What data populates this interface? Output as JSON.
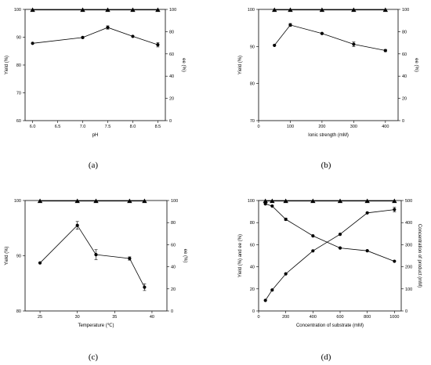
{
  "figure": {
    "panel_labels": [
      "(a)",
      "(b)",
      "(c)",
      "(d)"
    ]
  },
  "chart_data": [
    {
      "type": "line",
      "panel": "(a)",
      "xlabel": "pH",
      "ylabel": "Yield (%)",
      "y2label": "ee (%)",
      "xlim": [
        5.85,
        8.65
      ],
      "ylim": [
        60,
        100
      ],
      "y2lim": [
        0,
        100
      ],
      "xticks": [
        6.0,
        6.5,
        7.0,
        7.5,
        8.0,
        8.5
      ],
      "xticklabels": [
        "6.0",
        "6.5",
        "7.0",
        "7.5",
        "8.0",
        "8.5"
      ],
      "yticks": [
        60,
        70,
        80,
        90,
        100
      ],
      "y2ticks": [
        0,
        20,
        40,
        60,
        80,
        100
      ],
      "series": [
        {
          "axis": "y",
          "marker": "circle",
          "x": [
            6.0,
            7.0,
            7.5,
            8.0,
            8.5
          ],
          "y": [
            87.8,
            89.9,
            93.5,
            90.3,
            87.3
          ],
          "err": [
            0,
            0.3,
            0.6,
            0,
            0.8
          ]
        },
        {
          "axis": "y2",
          "marker": "triangle",
          "x": [
            6.0,
            7.0,
            7.5,
            8.0,
            8.5
          ],
          "y": [
            99.5,
            99.5,
            99.5,
            99.5,
            99.5
          ],
          "err": [
            0,
            0,
            0,
            0,
            0
          ]
        }
      ]
    },
    {
      "type": "line",
      "panel": "(b)",
      "xlabel": "Ionic strength (mM)",
      "ylabel": "Yield (%)",
      "y2label": "ee (%)",
      "xlim": [
        0,
        440
      ],
      "ylim": [
        70,
        100
      ],
      "y2lim": [
        0,
        100
      ],
      "xticks": [
        0,
        100,
        200,
        300,
        400
      ],
      "xticklabels": [
        "0",
        "100",
        "200",
        "300",
        "400"
      ],
      "yticks": [
        70,
        80,
        90,
        100
      ],
      "y2ticks": [
        0,
        20,
        40,
        60,
        80,
        100
      ],
      "series": [
        {
          "axis": "y",
          "marker": "circle",
          "x": [
            50,
            100,
            200,
            300,
            400
          ],
          "y": [
            90.3,
            95.8,
            93.5,
            90.6,
            88.9
          ],
          "err": [
            0,
            0.4,
            0,
            0.6,
            0.3
          ]
        },
        {
          "axis": "y2",
          "marker": "triangle",
          "x": [
            50,
            100,
            200,
            300,
            400
          ],
          "y": [
            99.5,
            99.5,
            99.5,
            99.5,
            99.5
          ],
          "err": [
            0,
            0,
            0,
            0,
            0
          ]
        }
      ]
    },
    {
      "type": "line",
      "panel": "(c)",
      "xlabel": "Temperature (℃)",
      "ylabel": "Yield (%)",
      "y2label": "ee (%)",
      "xlim": [
        23,
        42
      ],
      "ylim": [
        80,
        100
      ],
      "y2lim": [
        0,
        100
      ],
      "xticks": [
        25,
        30,
        35,
        40
      ],
      "xticklabels": [
        "25",
        "30",
        "35",
        "40"
      ],
      "yticks": [
        80,
        90,
        100
      ],
      "y2ticks": [
        0,
        20,
        40,
        60,
        80,
        100
      ],
      "series": [
        {
          "axis": "y",
          "marker": "circle",
          "x": [
            25,
            30,
            32.5,
            37,
            39
          ],
          "y": [
            88.7,
            95.5,
            90.2,
            89.5,
            84.3
          ],
          "err": [
            0,
            0.7,
            0.9,
            0.3,
            0.6
          ]
        },
        {
          "axis": "y2",
          "marker": "triangle",
          "x": [
            25,
            30,
            32.5,
            37,
            39
          ],
          "y": [
            99.5,
            99.5,
            99.5,
            99.5,
            99.5
          ],
          "err": [
            0,
            0,
            0,
            0,
            0
          ]
        }
      ]
    },
    {
      "type": "line",
      "panel": "(d)",
      "xlabel": "Concentration of substrate (mM)",
      "ylabel": "Yield (%) and ee (%)",
      "y2label": "Concentration of product (mM)",
      "xlim": [
        0,
        1050
      ],
      "ylim": [
        0,
        100
      ],
      "y2lim": [
        0,
        500
      ],
      "xticks": [
        0,
        200,
        400,
        600,
        800,
        1000
      ],
      "xticklabels": [
        "0",
        "200",
        "400",
        "600",
        "800",
        "1000"
      ],
      "yticks": [
        0,
        20,
        40,
        60,
        80,
        100
      ],
      "y2ticks": [
        0,
        100,
        200,
        300,
        400,
        500
      ],
      "series": [
        {
          "axis": "y",
          "marker": "circle",
          "x": [
            50,
            100,
            200,
            400,
            600,
            800,
            1000
          ],
          "y": [
            97,
            95,
            83,
            68,
            57,
            54.5,
            45
          ],
          "err": [
            0,
            0,
            1,
            0,
            0,
            0,
            0
          ]
        },
        {
          "axis": "y2",
          "marker": "circle",
          "x": [
            50,
            100,
            200,
            400,
            600,
            800,
            1000
          ],
          "y": [
            48,
            95,
            168,
            272,
            347,
            444,
            459
          ],
          "err": [
            0,
            0,
            0,
            0,
            0,
            0,
            10
          ]
        },
        {
          "axis": "y",
          "marker": "triangle",
          "x": [
            50,
            100,
            200,
            400,
            600,
            800,
            1000
          ],
          "y": [
            99.5,
            99.5,
            99.5,
            99.5,
            99.5,
            99.5,
            99.5
          ],
          "err": [
            0,
            0,
            0,
            0,
            0,
            0,
            0
          ]
        }
      ]
    }
  ]
}
